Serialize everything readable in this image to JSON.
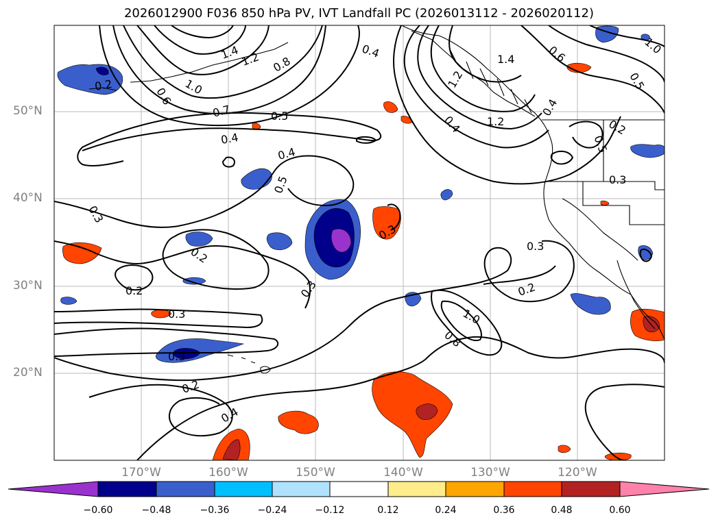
{
  "title": "2026012900 F036 850 hPa PV, IVT Landfall PC (2026013112 - 2026020112)",
  "map": {
    "lat_labels": [
      "50°N",
      "40°N",
      "30°N",
      "20°N"
    ],
    "lon_labels": [
      "170°W",
      "160°W",
      "150°W",
      "140°W",
      "130°W",
      "120°W"
    ],
    "contour_labels": [
      "1.4",
      "1.2",
      "0.8",
      "1.0",
      "0.6",
      "0.7",
      "0.5",
      "0.4",
      "0.2",
      "0.4",
      "0.4",
      "0.5",
      "0.3",
      "0.3",
      "0.2",
      "0.3",
      "0.2",
      "0.3",
      "0.3",
      "0.2",
      "0.3",
      "0.2",
      "0.4",
      "0.8",
      "1.0",
      "1.4",
      "1.2",
      "1.0",
      "0.5",
      "0.6",
      "0.4",
      "0.2",
      "0.3",
      "0.5",
      "0.4",
      "1.2"
    ]
  },
  "colorbar": {
    "ticks": [
      "−0.60",
      "−0.48",
      "−0.36",
      "−0.24",
      "−0.12",
      "0.12",
      "0.24",
      "0.36",
      "0.48",
      "0.60"
    ],
    "colors": [
      "#9a32cd",
      "#00008b",
      "#3a5fcd",
      "#00bfff",
      "#b0e2ff",
      "#ffffff",
      "#ffec8b",
      "#ffa500",
      "#ff4500",
      "#b22222",
      "#ff82ab"
    ]
  }
}
